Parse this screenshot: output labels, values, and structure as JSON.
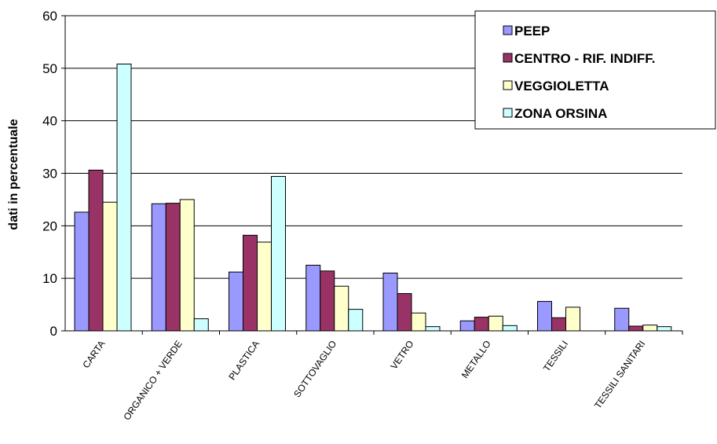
{
  "chart_data": {
    "type": "bar",
    "title": "",
    "xlabel": "",
    "ylabel": "dati in percentuale",
    "ylim": [
      0,
      60
    ],
    "yticks": [
      0,
      10,
      20,
      30,
      40,
      50,
      60
    ],
    "grid": true,
    "legend_position": "top-right",
    "categories": [
      "CARTA",
      "ORGANICO + VERDE",
      "PLASTICA",
      "SOTTOVAGLIO",
      "VETRO",
      "METALLO",
      "TESSILI",
      "TESSILI SANITARI"
    ],
    "series": [
      {
        "name": "PEEP",
        "color": "#9999ff",
        "values": [
          22.6,
          24.2,
          11.2,
          12.5,
          11.0,
          1.9,
          5.6,
          4.3
        ]
      },
      {
        "name": "CENTRO - RIF. INDIFF.",
        "color": "#993366",
        "values": [
          30.6,
          24.3,
          18.2,
          11.4,
          7.1,
          2.6,
          2.5,
          0.9
        ]
      },
      {
        "name": "VEGGIOLETTA",
        "color": "#ffffcc",
        "values": [
          24.5,
          25.0,
          16.9,
          8.5,
          3.4,
          2.8,
          4.5,
          1.1
        ]
      },
      {
        "name": "ZONA ORSINA",
        "color": "#ccffff",
        "values": [
          50.8,
          2.3,
          29.4,
          4.1,
          0.8,
          1.0,
          0.0,
          0.8
        ]
      }
    ]
  }
}
